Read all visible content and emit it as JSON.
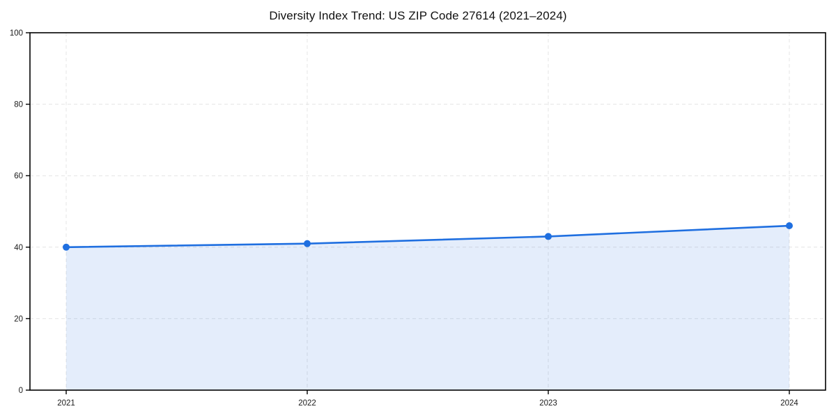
{
  "page": {
    "background": "#ffffff"
  },
  "chart_data": {
    "type": "area",
    "title": "Diversity Index Trend: US ZIP Code 27614 (2021–2024)",
    "categories": [
      "2021",
      "2022",
      "2023",
      "2024"
    ],
    "values": [
      40,
      41,
      43,
      46
    ],
    "xlabel": "",
    "ylabel": "",
    "ylim": [
      0,
      100
    ],
    "yticks": [
      0,
      20,
      40,
      60,
      80,
      100
    ],
    "grid": "dashed-both-axes",
    "legend": "none",
    "colors": {
      "line": "#1f6fe0",
      "marker": "#1f6fe0",
      "fill": "rgba(31,111,224,0.12)",
      "gridline": "#e4e4e4",
      "frame": "#000000",
      "tick_label": "#1a1a1a",
      "title": "#111111"
    }
  }
}
